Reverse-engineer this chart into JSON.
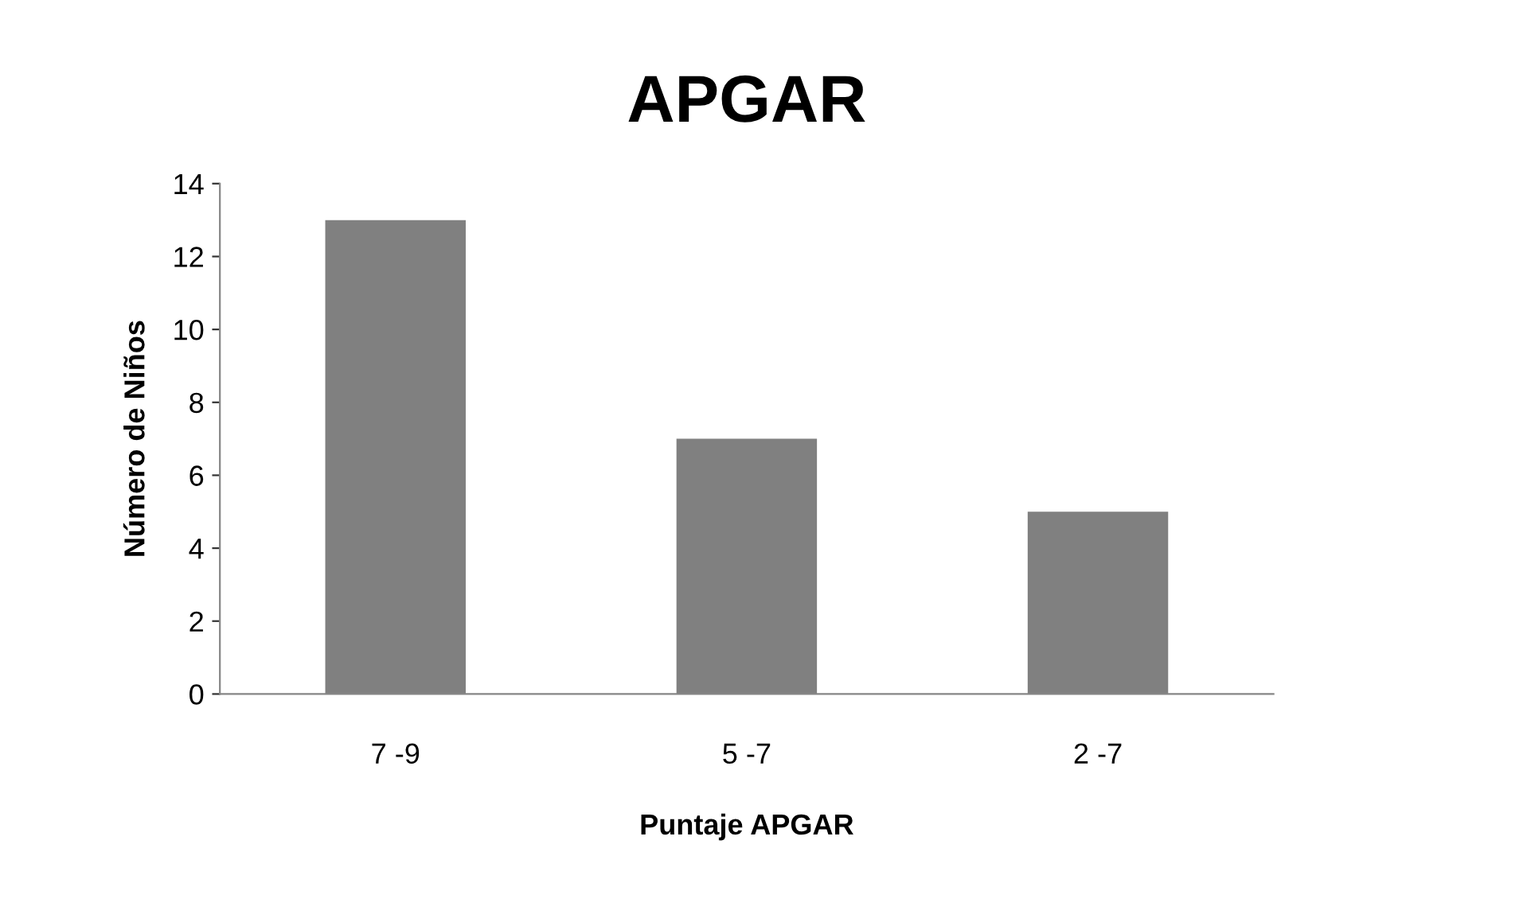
{
  "chart_data": {
    "type": "bar",
    "title": "APGAR",
    "xlabel": "Puntaje APGAR",
    "ylabel": "Número de Niños",
    "categories": [
      "7 -9",
      "5 -7",
      "2 -7"
    ],
    "values": [
      13,
      7,
      5
    ],
    "color": "#808080",
    "ylim": [
      0,
      14
    ],
    "yticks": [
      0,
      2,
      4,
      6,
      8,
      10,
      12,
      14
    ],
    "grid": false,
    "legend": false
  }
}
